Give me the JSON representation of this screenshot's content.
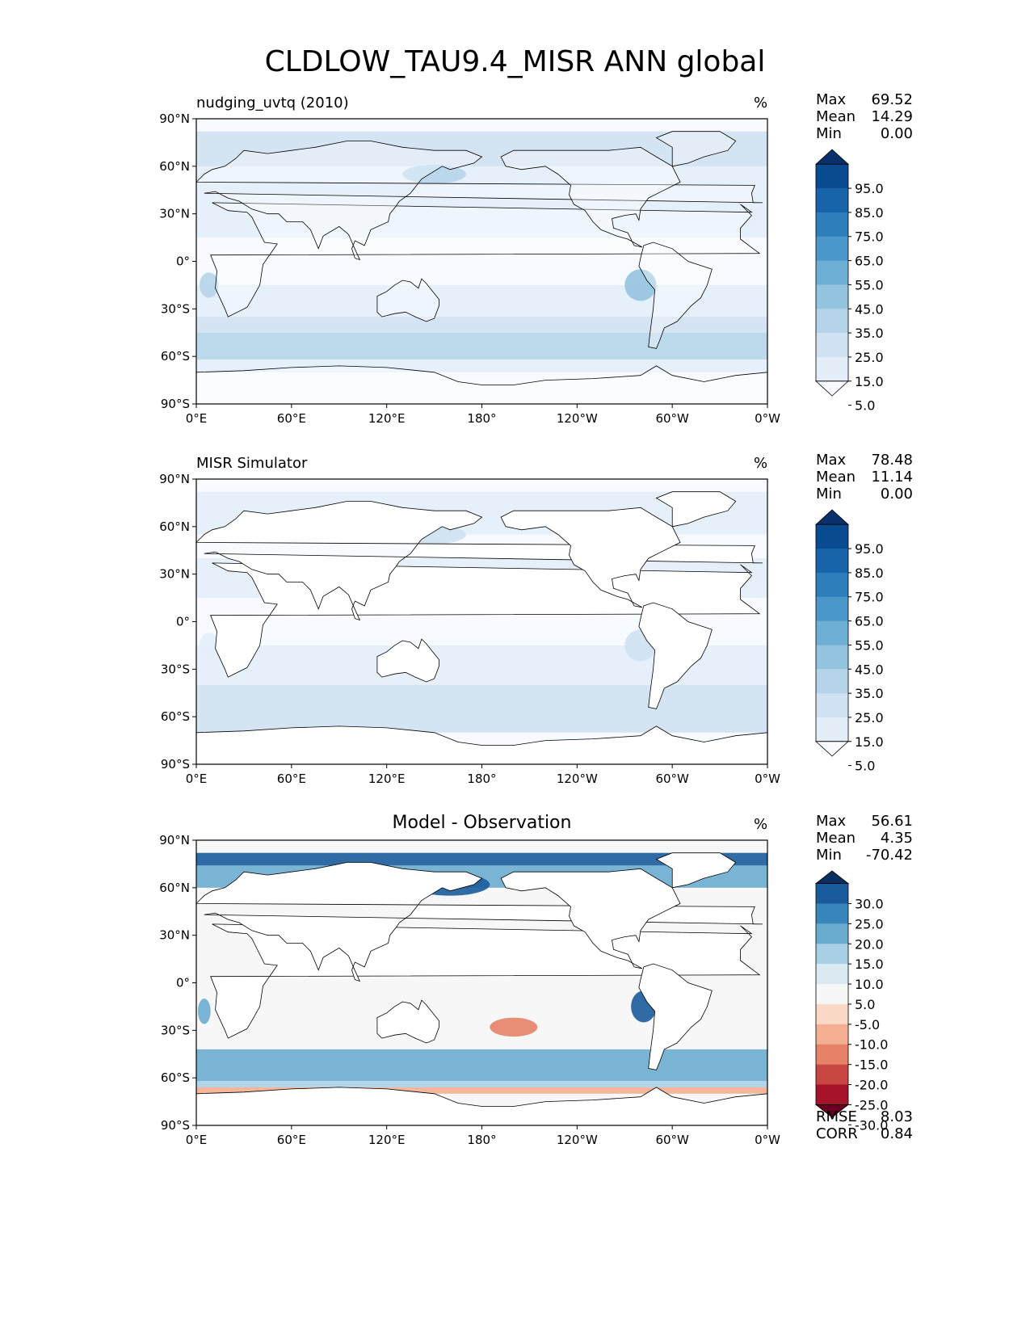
{
  "figure_title": "CLDLOW_TAU9.4_MISR ANN global",
  "axes": {
    "lat_ticks": [
      "90°N",
      "60°N",
      "30°N",
      "0°",
      "30°S",
      "60°S",
      "90°S"
    ],
    "lon_ticks": [
      "0°E",
      "60°E",
      "120°E",
      "180°",
      "120°W",
      "60°W",
      "0°W"
    ]
  },
  "panels": [
    {
      "title_left": "nudging_uvtq (2010)",
      "title_center": "",
      "units": "%",
      "stats": [
        {
          "label": "Max",
          "value": "69.52"
        },
        {
          "label": "Mean",
          "value": "14.29"
        },
        {
          "label": "Min",
          "value": "0.00"
        }
      ],
      "colorbar": {
        "labels": [
          "95.0",
          "85.0",
          "75.0",
          "65.0",
          "55.0",
          "45.0",
          "35.0",
          "25.0",
          "15.0",
          "5.0"
        ],
        "colors": [
          "#f7fbff",
          "#e3eef9",
          "#cfe1f2",
          "#b5d4e9",
          "#93c3df",
          "#6daed5",
          "#4b97c9",
          "#2f7ebc",
          "#1864aa",
          "#0a4a90",
          "#08306b"
        ]
      },
      "footer_stats": []
    },
    {
      "title_left": "MISR Simulator",
      "title_center": "",
      "units": "%",
      "stats": [
        {
          "label": "Max",
          "value": "78.48"
        },
        {
          "label": "Mean",
          "value": "11.14"
        },
        {
          "label": "Min",
          "value": "0.00"
        }
      ],
      "colorbar": {
        "labels": [
          "95.0",
          "85.0",
          "75.0",
          "65.0",
          "55.0",
          "45.0",
          "35.0",
          "25.0",
          "15.0",
          "5.0"
        ],
        "colors": [
          "#f7fbff",
          "#e3eef9",
          "#cfe1f2",
          "#b5d4e9",
          "#93c3df",
          "#6daed5",
          "#4b97c9",
          "#2f7ebc",
          "#1864aa",
          "#0a4a90",
          "#08306b"
        ]
      },
      "footer_stats": []
    },
    {
      "title_left": "",
      "title_center": "Model - Observation",
      "units": "%",
      "stats": [
        {
          "label": "Max",
          "value": "56.61"
        },
        {
          "label": "Mean",
          "value": "4.35"
        },
        {
          "label": "Min",
          "value": "-70.42"
        }
      ],
      "colorbar": {
        "labels": [
          "30.0",
          "25.0",
          "20.0",
          "15.0",
          "10.0",
          "5.0",
          "-5.0",
          "-10.0",
          "-15.0",
          "-20.0",
          "-25.0",
          "-30.0"
        ],
        "colors": [
          "#67001f",
          "#a51429",
          "#c94741",
          "#e58267",
          "#f4ae91",
          "#fbd9c7",
          "#f7f7f7",
          "#dbeaf2",
          "#a9cfe5",
          "#6aacd0",
          "#3885bc",
          "#1a5b9b",
          "#053061"
        ]
      },
      "footer_stats": [
        {
          "label": "RMSE",
          "value": "8.03"
        },
        {
          "label": "CORR",
          "value": "0.84"
        }
      ]
    }
  ]
}
